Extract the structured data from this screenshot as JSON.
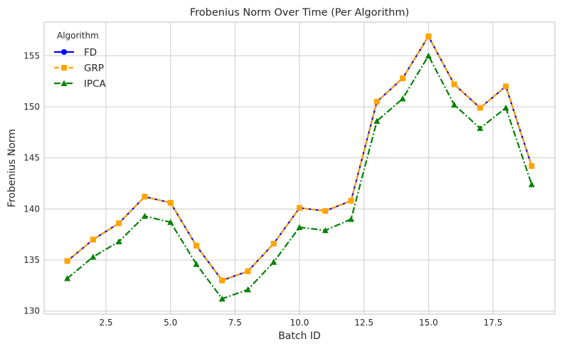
{
  "chart_data": {
    "type": "line",
    "title": "Frobenius Norm Over Time (Per Algorithm)",
    "xlabel": "Batch ID",
    "ylabel": "Frobenius Norm",
    "xlim": [
      0.1,
      19.9
    ],
    "ylim": [
      129.7,
      158.3
    ],
    "xticks": [
      2.5,
      5.0,
      7.5,
      10.0,
      12.5,
      15.0,
      17.5
    ],
    "xtick_labels": [
      "2.5",
      "5.0",
      "7.5",
      "10.0",
      "12.5",
      "15.0",
      "17.5"
    ],
    "yticks": [
      130,
      135,
      140,
      145,
      150,
      155
    ],
    "ytick_labels": [
      "130",
      "135",
      "140",
      "145",
      "150",
      "155"
    ],
    "grid": true,
    "legend": {
      "title": "Algorithm",
      "placement": "top-left"
    },
    "x": [
      1,
      2,
      3,
      4,
      5,
      6,
      7,
      8,
      9,
      10,
      11,
      12,
      13,
      14,
      15,
      16,
      17,
      18,
      19
    ],
    "series": [
      {
        "name": "FD",
        "color": "#0000ff",
        "marker": "circle",
        "line_style": "solid",
        "values": [
          134.9,
          137.0,
          138.6,
          141.2,
          140.6,
          136.4,
          133.0,
          133.9,
          136.6,
          140.1,
          139.8,
          140.8,
          150.5,
          152.8,
          156.9,
          152.2,
          149.9,
          152.0,
          144.2
        ]
      },
      {
        "name": "GRP",
        "color": "#ffa500",
        "marker": "square",
        "line_style": "dashed",
        "values": [
          134.9,
          137.0,
          138.6,
          141.2,
          140.6,
          136.4,
          133.0,
          133.9,
          136.6,
          140.1,
          139.8,
          140.8,
          150.5,
          152.8,
          156.9,
          152.2,
          149.9,
          152.0,
          144.2
        ]
      },
      {
        "name": "IPCA",
        "color": "#008000",
        "marker": "triangle",
        "line_style": "dashdot",
        "values": [
          133.2,
          135.3,
          136.8,
          139.3,
          138.7,
          134.6,
          131.2,
          132.1,
          134.8,
          138.2,
          137.9,
          139.0,
          148.6,
          150.8,
          155.0,
          150.2,
          147.9,
          149.9,
          142.4
        ]
      }
    ]
  }
}
